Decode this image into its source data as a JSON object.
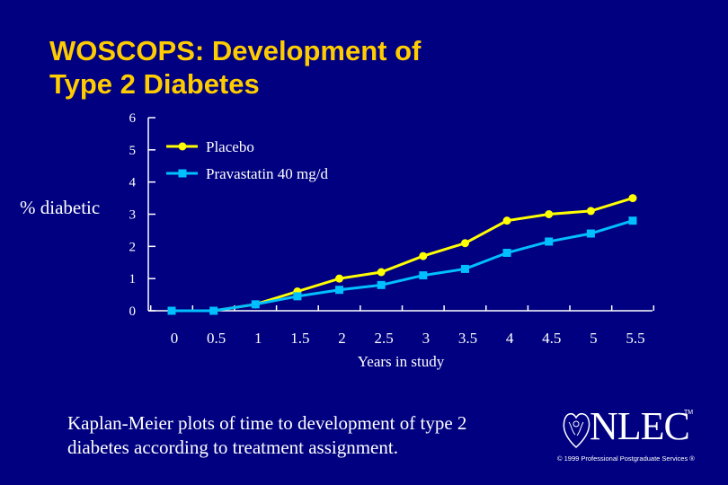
{
  "slide": {
    "title_line1": "WOSCOPS: Development of",
    "title_line2": "Type 2 Diabetes",
    "caption_line1": "Kaplan-Meier plots of time to development of type 2",
    "caption_line2": "diabetes according to treatment assignment.",
    "logo_text": "NLEC",
    "logo_tm": "TM",
    "copyright": "© 1999 Professional Postgraduate Services ®"
  },
  "colors": {
    "background": "#000080",
    "title": "#FFCC00",
    "text": "#FFFFFF",
    "placebo": "#FFFF00",
    "pravastatin": "#00BFFF"
  },
  "chart_data": {
    "type": "line",
    "title": "",
    "xlabel": "Years in study",
    "ylabel": "% diabetic",
    "xlim": [
      0,
      5.5
    ],
    "ylim": [
      0,
      6
    ],
    "xticks": [
      "0",
      "0.5",
      "1",
      "1.5",
      "2",
      "2.5",
      "3",
      "3.5",
      "4",
      "4.5",
      "5",
      "5.5"
    ],
    "yticks": [
      "0",
      "1",
      "2",
      "3",
      "4",
      "5",
      "6"
    ],
    "legend_position": "top-left",
    "series": [
      {
        "name": "Placebo",
        "color": "#FFFF00",
        "marker": "circle",
        "x": [
          0,
          0.5,
          1,
          1.5,
          2,
          2.5,
          3,
          3.5,
          4,
          4.5,
          5,
          5.5
        ],
        "values": [
          0.0,
          0.0,
          0.2,
          0.6,
          1.0,
          1.2,
          1.7,
          2.1,
          2.8,
          3.0,
          3.1,
          3.5
        ]
      },
      {
        "name": "Pravastatin 40 mg/d",
        "color": "#00BFFF",
        "marker": "square",
        "x": [
          0,
          0.5,
          1,
          1.5,
          2,
          2.5,
          3,
          3.5,
          4,
          4.5,
          5,
          5.5
        ],
        "values": [
          0.0,
          0.0,
          0.2,
          0.45,
          0.65,
          0.8,
          1.1,
          1.3,
          1.8,
          2.15,
          2.4,
          2.8
        ]
      }
    ]
  }
}
